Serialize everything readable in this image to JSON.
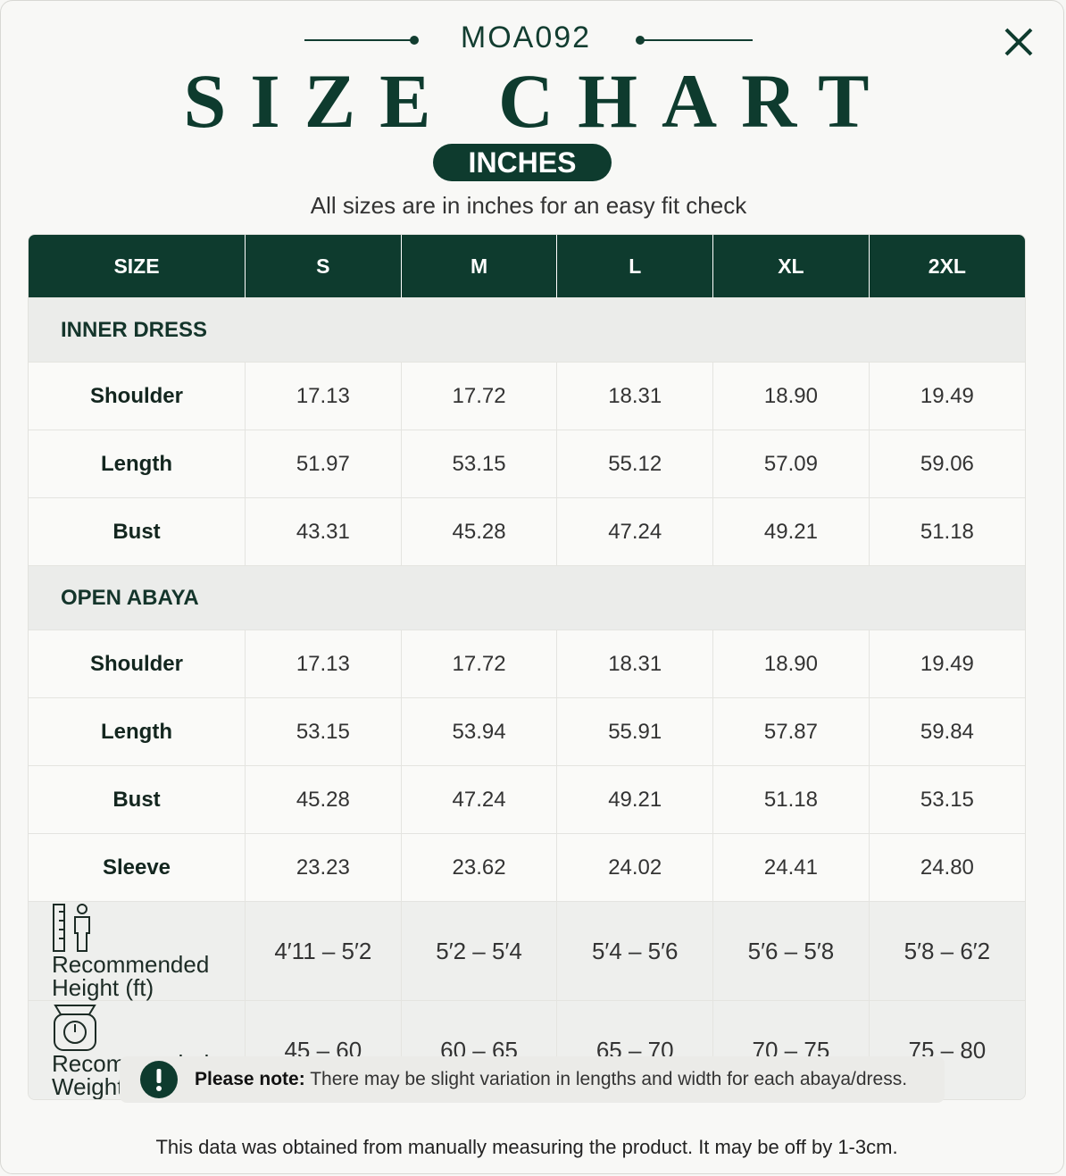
{
  "header": {
    "code": "MOA092",
    "title": "SIZE CHART",
    "unit": "INCHES",
    "subtitle": "All sizes are in inches for an easy fit check"
  },
  "table": {
    "columns": [
      "SIZE",
      "S",
      "M",
      "L",
      "XL",
      "2XL"
    ],
    "sections": [
      {
        "title": "INNER DRESS",
        "rows": [
          {
            "label": "Shoulder",
            "values": [
              "17.13",
              "17.72",
              "18.31",
              "18.90",
              "19.49"
            ]
          },
          {
            "label": "Length",
            "values": [
              "51.97",
              "53.15",
              "55.12",
              "57.09",
              "59.06"
            ]
          },
          {
            "label": "Bust",
            "values": [
              "43.31",
              "45.28",
              "47.24",
              "49.21",
              "51.18"
            ]
          }
        ]
      },
      {
        "title": "OPEN ABAYA",
        "rows": [
          {
            "label": "Shoulder",
            "values": [
              "17.13",
              "17.72",
              "18.31",
              "18.90",
              "19.49"
            ]
          },
          {
            "label": "Length",
            "values": [
              "53.15",
              "53.94",
              "55.91",
              "57.87",
              "59.84"
            ]
          },
          {
            "label": "Bust",
            "values": [
              "45.28",
              "47.24",
              "49.21",
              "51.18",
              "53.15"
            ]
          },
          {
            "label": "Sleeve",
            "values": [
              "23.23",
              "23.62",
              "24.02",
              "24.41",
              "24.80"
            ]
          }
        ]
      }
    ],
    "recommended": [
      {
        "label_lines": [
          "Recommended",
          "Height (ft)"
        ],
        "values": [
          "4′11 – 5′2",
          "5′2 – 5′4",
          "5′4 – 5′6",
          "5′6 – 5′8",
          "5′8 – 6′2"
        ]
      },
      {
        "label_lines": [
          "Recommended",
          "Weight (kg)"
        ],
        "values": [
          "45 – 60",
          "60 – 65",
          "65 – 70",
          "70 – 75",
          "75 – 80"
        ]
      }
    ]
  },
  "note": {
    "label": "Please note:",
    "text": "There may be slight variation in lengths and width for each abaya/dress."
  },
  "footer": "This data was obtained from manually measuring the product. It may be off by 1-3cm."
}
